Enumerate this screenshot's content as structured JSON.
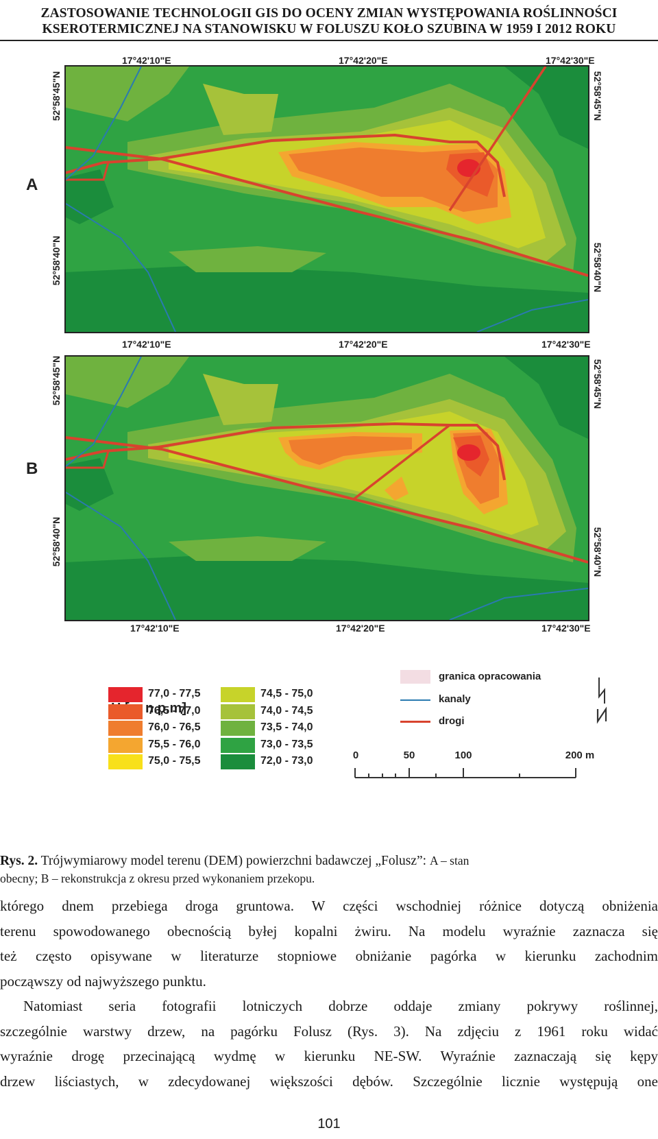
{
  "header": {
    "line1": "ZASTOSOWANIE TECHNOLOGII GIS DO OCENY ZMIAN WYSTĘPOWANIA ROŚLINNOŚCI",
    "line2": "KSEROTERMICZNEJ  NA STANOWISKU W FOLUSZU KOŁO SZUBINA W 1959 I 2012 ROKU"
  },
  "figure": {
    "panels": [
      {
        "label": "A",
        "top_coords": [
          "17°42'10\"E",
          "17°42'20\"E",
          "17°42'30\"E"
        ],
        "left_coords": [
          "52°58'45\"N",
          "52°58'40\"N"
        ],
        "right_coords": [
          "52°58'45\"N",
          "52°58'40\"N"
        ]
      },
      {
        "label": "B",
        "top_coords": [
          "17°42'10\"E",
          "17°42'20\"E",
          "17°42'30\"E"
        ],
        "bottom_coords": [
          "17°42'10\"E",
          "17°42'20\"E",
          "17°42'30\"E"
        ],
        "left_coords": [
          "52°58'45\"N",
          "52°58'40\"N"
        ],
        "right_coords": [
          "52°58'45\"N",
          "52°58'40\"N"
        ]
      }
    ],
    "legend": {
      "title": "H [m n.p.m]",
      "classes_left": [
        {
          "label": "77,0 - 77,5",
          "color": "#e5252d"
        },
        {
          "label": "76,5 - 77,0",
          "color": "#ea5a2a"
        },
        {
          "label": "76,0 - 76,5",
          "color": "#ef7d2e"
        },
        {
          "label": "75,5 - 76,0",
          "color": "#f4a630"
        },
        {
          "label": "75,0 - 75,5",
          "color": "#f8e01a"
        }
      ],
      "classes_right": [
        {
          "label": "74,5 - 75,0",
          "color": "#c7d32a"
        },
        {
          "label": "74,0 - 74,5",
          "color": "#a6c23a"
        },
        {
          "label": "73,5 - 74,0",
          "color": "#6fb23f"
        },
        {
          "label": "73,0 - 73,5",
          "color": "#2fa343"
        },
        {
          "label": "72,0 - 73,0",
          "color": "#1b8d3c"
        }
      ],
      "symbols": [
        {
          "label": "granica opracowania",
          "color": "#f3dde3"
        },
        {
          "label": "kanaly",
          "color": "#2a7ab0"
        },
        {
          "label": "drogi",
          "color": "#d8432e"
        }
      ],
      "scale": [
        "0",
        "50",
        "100",
        "200 m"
      ]
    }
  },
  "caption": {
    "label": "Rys. 2.",
    "text": " Trójwymiarowy model terenu (DEM) powierzchni badawczej „Folusz”: ",
    "text_small_1": "A – stan",
    "line2": "obecny; B – rekonstrukcja z okresu przed wykonaniem przekopu."
  },
  "body": {
    "p1_lines": [
      "którego dnem przebiega droga gruntowa. W części wschodniej różnice dotyczą obniżenia",
      "terenu spowodowanego obecnością byłej kopalni żwiru. Na modelu wyraźnie zaznacza się",
      "też często opisywane w literaturze stopniowe obniżanie pagórka w kierunku zachodnim",
      "począwszy od najwyższego punktu."
    ],
    "p2_lines": [
      "Natomiast seria fotografii lotniczych dobrze oddaje zmiany pokrywy roślinnej,",
      "szczególnie warstwy drzew, na pagórku Folusz (Rys. 3). Na zdjęciu z 1961 roku widać",
      "wyraźnie drogę przecinającą wydmę w kierunku NE-SW. Wyraźnie zaznaczają się kępy",
      "drzew liściastych, w zdecydowanej większości dębów. Szczególnie licznie występują one"
    ]
  },
  "page_number": "101"
}
